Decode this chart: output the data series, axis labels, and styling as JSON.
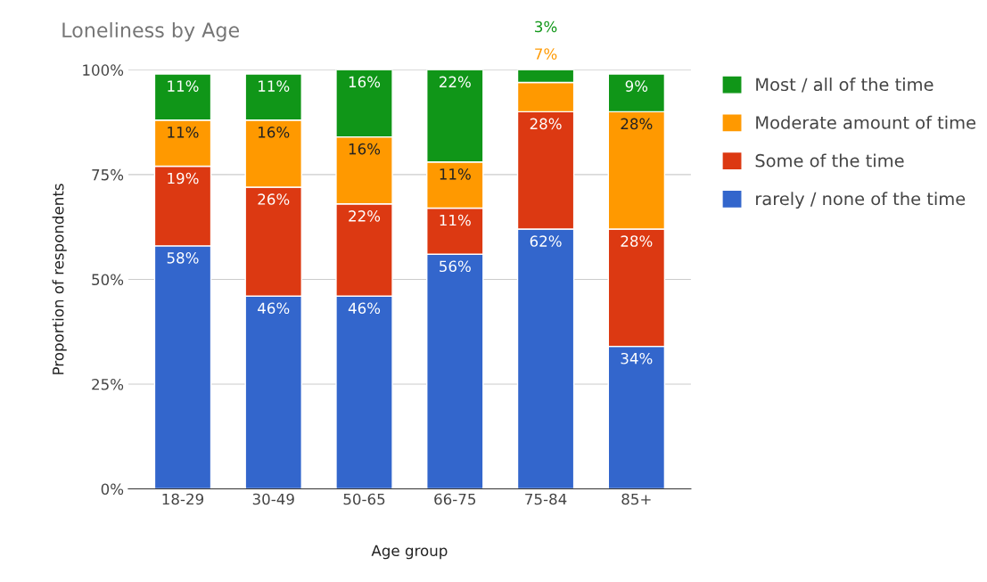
{
  "chart_data": {
    "type": "bar",
    "stacked": true,
    "title": "Loneliness by Age",
    "xlabel": "Age group",
    "ylabel": "Proportion of respondents",
    "categories": [
      "18-29",
      "30-49",
      "50-65",
      "66-75",
      "75-84",
      "85+"
    ],
    "series": [
      {
        "name": "rarely / none of the time",
        "color": "#3366cc",
        "values": [
          58,
          46,
          46,
          56,
          62,
          34
        ],
        "value_labels": [
          "58%",
          "46%",
          "46%",
          "56%",
          "62%",
          "34%"
        ]
      },
      {
        "name": "Some of the time",
        "color": "#dc3912",
        "values": [
          19,
          26,
          22,
          11,
          28,
          28
        ],
        "value_labels": [
          "19%",
          "26%",
          "22%",
          "11%",
          "28%",
          "28%"
        ]
      },
      {
        "name": "Moderate amount of time",
        "color": "#ff9900",
        "values": [
          11,
          16,
          16,
          11,
          7,
          28
        ],
        "value_labels": [
          "11%",
          "16%",
          "16%",
          "11%",
          "7%",
          "28%"
        ]
      },
      {
        "name": "Most / all of the time",
        "color": "#109618",
        "values": [
          11,
          11,
          16,
          22,
          3,
          9
        ],
        "value_labels": [
          "11%",
          "11%",
          "16%",
          "22%",
          "3%",
          "9%"
        ]
      }
    ],
    "ylim": [
      0,
      100
    ],
    "yticks": [
      {
        "value": 0,
        "label": "0%"
      },
      {
        "value": 25,
        "label": "25%"
      },
      {
        "value": 50,
        "label": "50%"
      },
      {
        "value": 75,
        "label": "75%"
      },
      {
        "value": 100,
        "label": "100%"
      }
    ],
    "grid": "y",
    "legend": "right"
  }
}
